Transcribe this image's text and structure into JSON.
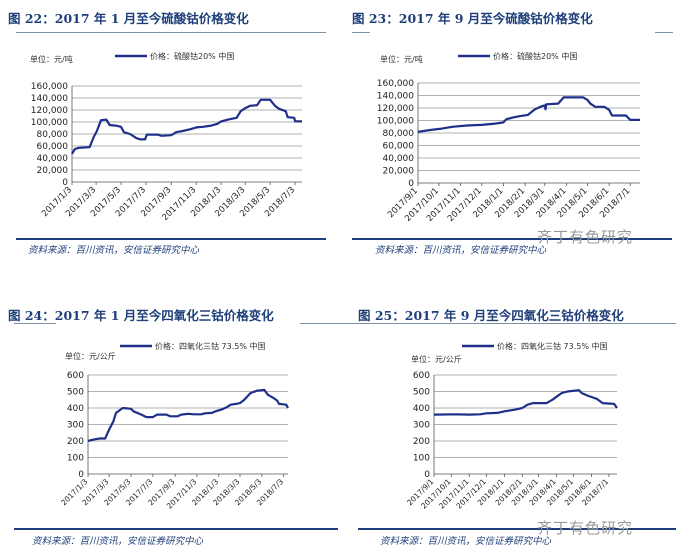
{
  "panels": [
    {
      "title": "图 22：2017 年 1 月至今硫酸钴价格变化",
      "source": "资料来源：百川资讯，安信证券研究中心"
    },
    {
      "title": "图 23：2017 年 9 月至今硫酸钴价格变化",
      "source": "资料来源：百川资讯，安信证券研究中心"
    },
    {
      "title": "图 24：2017 年 1 月至今四氧化三钴价格变化",
      "source": "资料来源：百川资讯，安信证券研究中心"
    },
    {
      "title": "图 25：2017 年 9 月至今四氧化三钴价格变化",
      "source": "资料来源：百川资讯，安信证券研究中心"
    }
  ],
  "watermark": "齐丁有色研究",
  "colors": {
    "line": "#1f2f8a",
    "grid": "#999999",
    "title": "#1f3f7a"
  },
  "chart_data": [
    {
      "type": "line",
      "unit_label": "单位：元/吨",
      "legend": "价格：硫酸钴20% 中国",
      "legend_position": "top",
      "grid": true,
      "ylim": [
        0,
        160000
      ],
      "yticks": [
        "0",
        "20,000",
        "40,000",
        "60,000",
        "80,000",
        "100,000",
        "120,000",
        "140,000",
        "160,000"
      ],
      "xticks": [
        "2017/1/3",
        "2017/3/3",
        "2017/5/3",
        "2017/7/3",
        "2017/9/3",
        "2017/11/3",
        "2018/1/3",
        "2018/3/3",
        "2018/5/3",
        "2018/7/3"
      ],
      "xrange": [
        "2017-01-03",
        "2018-07-20"
      ],
      "series": [
        {
          "name": "价格：硫酸钴20% 中国",
          "points": [
            [
              "2017-01-03",
              47000
            ],
            [
              "2017-01-10",
              55000
            ],
            [
              "2017-01-20",
              57000
            ],
            [
              "2017-02-15",
              58000
            ],
            [
              "2017-02-25",
              75000
            ],
            [
              "2017-03-05",
              85000
            ],
            [
              "2017-03-15",
              103000
            ],
            [
              "2017-03-28",
              104000
            ],
            [
              "2017-04-05",
              95000
            ],
            [
              "2017-04-20",
              94000
            ],
            [
              "2017-05-03",
              92000
            ],
            [
              "2017-05-10",
              83000
            ],
            [
              "2017-05-25",
              80000
            ],
            [
              "2017-06-10",
              73000
            ],
            [
              "2017-06-20",
              71000
            ],
            [
              "2017-07-01",
              71000
            ],
            [
              "2017-07-05",
              79000
            ],
            [
              "2017-08-01",
              79000
            ],
            [
              "2017-08-10",
              77000
            ],
            [
              "2017-09-03",
              78000
            ],
            [
              "2017-09-15",
              83000
            ],
            [
              "2017-10-01",
              85000
            ],
            [
              "2017-10-20",
              88000
            ],
            [
              "2017-11-03",
              91000
            ],
            [
              "2017-11-20",
              92000
            ],
            [
              "2017-12-10",
              94000
            ],
            [
              "2017-12-25",
              97000
            ],
            [
              "2018-01-03",
              101000
            ],
            [
              "2018-01-20",
              104000
            ],
            [
              "2018-02-10",
              107000
            ],
            [
              "2018-02-20",
              118000
            ],
            [
              "2018-03-03",
              123000
            ],
            [
              "2018-03-15",
              127000
            ],
            [
              "2018-04-01",
              128000
            ],
            [
              "2018-04-10",
              137000
            ],
            [
              "2018-05-03",
              137000
            ],
            [
              "2018-05-15",
              127000
            ],
            [
              "2018-05-25",
              122000
            ],
            [
              "2018-06-10",
              118000
            ],
            [
              "2018-06-15",
              108000
            ],
            [
              "2018-07-01",
              107000
            ],
            [
              "2018-07-03",
              101000
            ],
            [
              "2018-07-20",
              101000
            ]
          ]
        }
      ]
    },
    {
      "type": "line",
      "unit_label": "单位：元/吨",
      "legend": "价格：硫酸钴20% 中国",
      "legend_position": "top",
      "grid": true,
      "ylim": [
        0,
        160000
      ],
      "yticks": [
        "0",
        "20,000",
        "40,000",
        "60,000",
        "80,000",
        "100,000",
        "120,000",
        "140,000",
        "160,000"
      ],
      "xticks": [
        "2017/9/1",
        "2017/10/1",
        "2017/11/1",
        "2017/12/1",
        "2018/1/1",
        "2018/2/1",
        "2018/3/1",
        "2018/4/1",
        "2018/5/1",
        "2018/6/1",
        "2018/7/1"
      ],
      "xrange": [
        "2017-09-01",
        "2018-07-15"
      ],
      "series": [
        {
          "name": "价格：硫酸钴20% 中国",
          "points": [
            [
              "2017-09-01",
              82000
            ],
            [
              "2017-09-20",
              85000
            ],
            [
              "2017-10-05",
              87000
            ],
            [
              "2017-10-20",
              90000
            ],
            [
              "2017-11-10",
              92000
            ],
            [
              "2017-12-01",
              93000
            ],
            [
              "2017-12-20",
              95000
            ],
            [
              "2018-01-01",
              97000
            ],
            [
              "2018-01-05",
              102000
            ],
            [
              "2018-01-15",
              105000
            ],
            [
              "2018-01-25",
              107000
            ],
            [
              "2018-02-05",
              109000
            ],
            [
              "2018-02-15",
              118000
            ],
            [
              "2018-02-25",
              123000
            ],
            [
              "2018-03-01",
              124000
            ],
            [
              "2018-03-02",
              118000
            ],
            [
              "2018-03-03",
              126000
            ],
            [
              "2018-03-20",
              127000
            ],
            [
              "2018-03-28",
              137000
            ],
            [
              "2018-04-25",
              137000
            ],
            [
              "2018-05-01",
              133000
            ],
            [
              "2018-05-05",
              127000
            ],
            [
              "2018-05-12",
              122000
            ],
            [
              "2018-05-25",
              122000
            ],
            [
              "2018-06-01",
              117000
            ],
            [
              "2018-06-05",
              108000
            ],
            [
              "2018-06-25",
              108000
            ],
            [
              "2018-07-01",
              101000
            ],
            [
              "2018-07-15",
              101000
            ]
          ]
        }
      ]
    },
    {
      "type": "line",
      "unit_label": "单位：元/公斤",
      "legend": "价格：四氧化三钴 73.5% 中国",
      "legend_position": "top",
      "grid": true,
      "ylim": [
        0,
        600
      ],
      "yticks": [
        "0",
        "100",
        "200",
        "300",
        "400",
        "500",
        "600"
      ],
      "xticks": [
        "2017/1/3",
        "2017/3/3",
        "2017/5/3",
        "2017/7/3",
        "2017/9/3",
        "2017/11/3",
        "2018/1/3",
        "2018/3/3",
        "2018/5/3",
        "2018/7/3"
      ],
      "xrange": [
        "2017-01-03",
        "2018-07-15"
      ],
      "series": [
        {
          "name": "价格：四氧化三钴 73.5% 中国",
          "points": [
            [
              "2017-01-03",
              200
            ],
            [
              "2017-01-20",
              210
            ],
            [
              "2017-02-05",
              215
            ],
            [
              "2017-02-20",
              215
            ],
            [
              "2017-03-01",
              260
            ],
            [
              "2017-03-15",
              320
            ],
            [
              "2017-03-22",
              370
            ],
            [
              "2017-04-10",
              400
            ],
            [
              "2017-05-03",
              395
            ],
            [
              "2017-05-10",
              380
            ],
            [
              "2017-06-01",
              360
            ],
            [
              "2017-06-15",
              345
            ],
            [
              "2017-07-03",
              345
            ],
            [
              "2017-07-15",
              360
            ],
            [
              "2017-08-10",
              360
            ],
            [
              "2017-08-20",
              350
            ],
            [
              "2017-09-10",
              350
            ],
            [
              "2017-09-20",
              360
            ],
            [
              "2017-10-10",
              365
            ],
            [
              "2017-10-25",
              362
            ],
            [
              "2017-11-15",
              362
            ],
            [
              "2017-11-25",
              368
            ],
            [
              "2017-12-15",
              370
            ],
            [
              "2017-12-25",
              380
            ],
            [
              "2018-01-10",
              390
            ],
            [
              "2018-01-25",
              405
            ],
            [
              "2018-02-05",
              420
            ],
            [
              "2018-02-20",
              425
            ],
            [
              "2018-03-03",
              430
            ],
            [
              "2018-03-15",
              450
            ],
            [
              "2018-04-01",
              490
            ],
            [
              "2018-04-20",
              505
            ],
            [
              "2018-05-10",
              510
            ],
            [
              "2018-05-20",
              480
            ],
            [
              "2018-06-05",
              460
            ],
            [
              "2018-06-15",
              445
            ],
            [
              "2018-06-20",
              425
            ],
            [
              "2018-07-10",
              420
            ],
            [
              "2018-07-15",
              400
            ]
          ]
        }
      ]
    },
    {
      "type": "line",
      "unit_label": "单位：元/公斤",
      "legend": "价格：四氧化三钴 73.5% 中国",
      "legend_position": "top",
      "grid": true,
      "ylim": [
        0,
        600
      ],
      "yticks": [
        "0",
        "100",
        "200",
        "300",
        "400",
        "500",
        "600"
      ],
      "xticks": [
        "2017/9/1",
        "2017/10/1",
        "2017/11/1",
        "2017/12/1",
        "2018/1/1",
        "2018/2/1",
        "2018/3/1",
        "2018/4/1",
        "2018/5/1",
        "2018/6/1",
        "2018/7/1"
      ],
      "xrange": [
        "2017-09-01",
        "2018-07-15"
      ],
      "series": [
        {
          "name": "价格：四氧化三钴 73.5% 中国",
          "points": [
            [
              "2017-09-01",
              360
            ],
            [
              "2017-10-10",
              362
            ],
            [
              "2017-11-01",
              360
            ],
            [
              "2017-11-20",
              362
            ],
            [
              "2017-12-01",
              368
            ],
            [
              "2017-12-20",
              370
            ],
            [
              "2018-01-01",
              380
            ],
            [
              "2018-01-20",
              390
            ],
            [
              "2018-02-01",
              400
            ],
            [
              "2018-02-10",
              420
            ],
            [
              "2018-02-20",
              430
            ],
            [
              "2018-03-15",
              430
            ],
            [
              "2018-03-25",
              450
            ],
            [
              "2018-04-10",
              490
            ],
            [
              "2018-04-20",
              500
            ],
            [
              "2018-05-10",
              508
            ],
            [
              "2018-05-15",
              490
            ],
            [
              "2018-05-25",
              475
            ],
            [
              "2018-06-10",
              455
            ],
            [
              "2018-06-20",
              430
            ],
            [
              "2018-07-10",
              425
            ],
            [
              "2018-07-15",
              400
            ]
          ]
        }
      ]
    }
  ]
}
